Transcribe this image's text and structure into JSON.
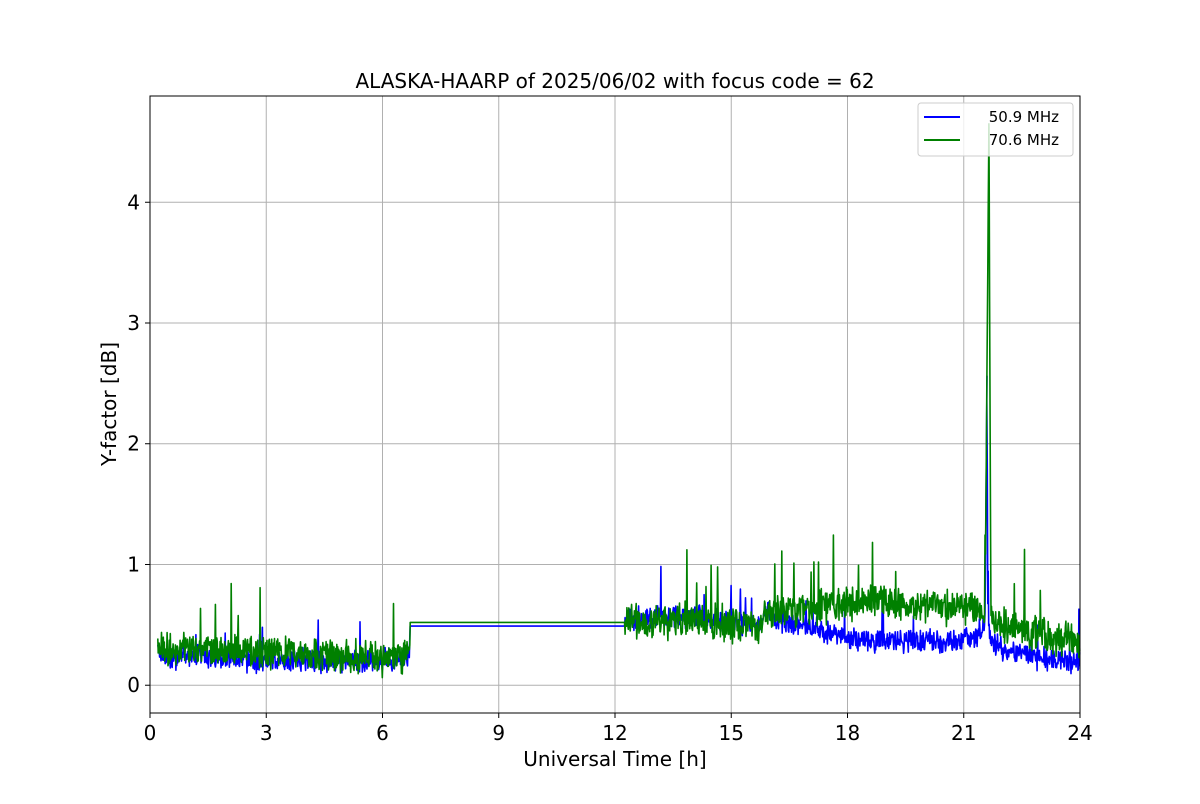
{
  "chart_data": {
    "type": "line",
    "title": "ALASKA-HAARP of 2025/06/02 with focus code = 62",
    "xlabel": "Universal Time [h]",
    "ylabel": "Y-factor [dB]",
    "xlim": [
      0,
      24
    ],
    "ylim": [
      -0.23,
      4.88
    ],
    "xticks": [
      0,
      3,
      6,
      9,
      12,
      15,
      18,
      21,
      24
    ],
    "xtick_labels": [
      "0",
      "3",
      "6",
      "9",
      "12",
      "15",
      "18",
      "21",
      "24"
    ],
    "yticks": [
      0,
      1,
      2,
      3,
      4
    ],
    "ytick_labels": [
      "0",
      "1",
      "2",
      "3",
      "4"
    ],
    "grid": true,
    "legend_position": "top-right",
    "series": [
      {
        "name": "50.9 MHz",
        "color": "#0000ff",
        "x": [
          0.2,
          0.5,
          1.0,
          1.5,
          2.0,
          2.5,
          3.0,
          3.5,
          4.0,
          4.5,
          5.0,
          5.5,
          6.0,
          6.5,
          6.7,
          6.71,
          12.25,
          12.3,
          12.7,
          13.2,
          13.7,
          14.2,
          14.7,
          15.2,
          15.6,
          15.8,
          15.85,
          16.0,
          16.05,
          16.5,
          17.0,
          17.5,
          18.0,
          18.5,
          19.0,
          19.5,
          20.0,
          20.5,
          21.0,
          21.3,
          21.55,
          21.6,
          21.62,
          21.65,
          21.7,
          22.0,
          22.5,
          23.0,
          23.5,
          24.0
        ],
        "y": [
          0.28,
          0.22,
          0.25,
          0.24,
          0.22,
          0.2,
          0.2,
          0.21,
          0.22,
          0.2,
          0.19,
          0.2,
          0.21,
          0.22,
          0.23,
          0.49,
          0.49,
          0.55,
          0.55,
          0.56,
          0.57,
          0.57,
          0.54,
          0.52,
          0.5,
          0.5,
          0.62,
          0.62,
          0.55,
          0.52,
          0.48,
          0.44,
          0.4,
          0.38,
          0.37,
          0.36,
          0.38,
          0.35,
          0.38,
          0.4,
          0.5,
          2.56,
          0.6,
          0.45,
          0.38,
          0.3,
          0.25,
          0.22,
          0.2,
          0.2
        ],
        "noise": 0.08
      },
      {
        "name": "70.6 MHz",
        "color": "#008000",
        "x": [
          0.2,
          0.5,
          1.0,
          1.5,
          2.0,
          2.5,
          3.0,
          3.5,
          4.0,
          4.5,
          5.0,
          5.5,
          6.0,
          6.5,
          6.7,
          6.71,
          12.25,
          12.3,
          12.7,
          13.2,
          13.7,
          14.2,
          14.7,
          15.2,
          15.6,
          15.8,
          15.85,
          16.0,
          16.05,
          16.5,
          17.0,
          17.5,
          18.0,
          18.5,
          19.0,
          19.5,
          20.0,
          20.5,
          21.0,
          21.3,
          21.55,
          21.65,
          21.7,
          22.0,
          22.5,
          23.0,
          23.5,
          24.0
        ],
        "y": [
          0.32,
          0.3,
          0.3,
          0.31,
          0.29,
          0.27,
          0.26,
          0.27,
          0.27,
          0.25,
          0.24,
          0.24,
          0.23,
          0.25,
          0.26,
          0.52,
          0.52,
          0.56,
          0.52,
          0.52,
          0.54,
          0.55,
          0.52,
          0.5,
          0.49,
          0.49,
          0.63,
          0.63,
          0.62,
          0.63,
          0.64,
          0.66,
          0.68,
          0.7,
          0.7,
          0.68,
          0.66,
          0.65,
          0.65,
          0.62,
          0.6,
          4.65,
          0.55,
          0.5,
          0.47,
          0.42,
          0.38,
          0.35
        ],
        "noise": 0.12
      }
    ]
  }
}
